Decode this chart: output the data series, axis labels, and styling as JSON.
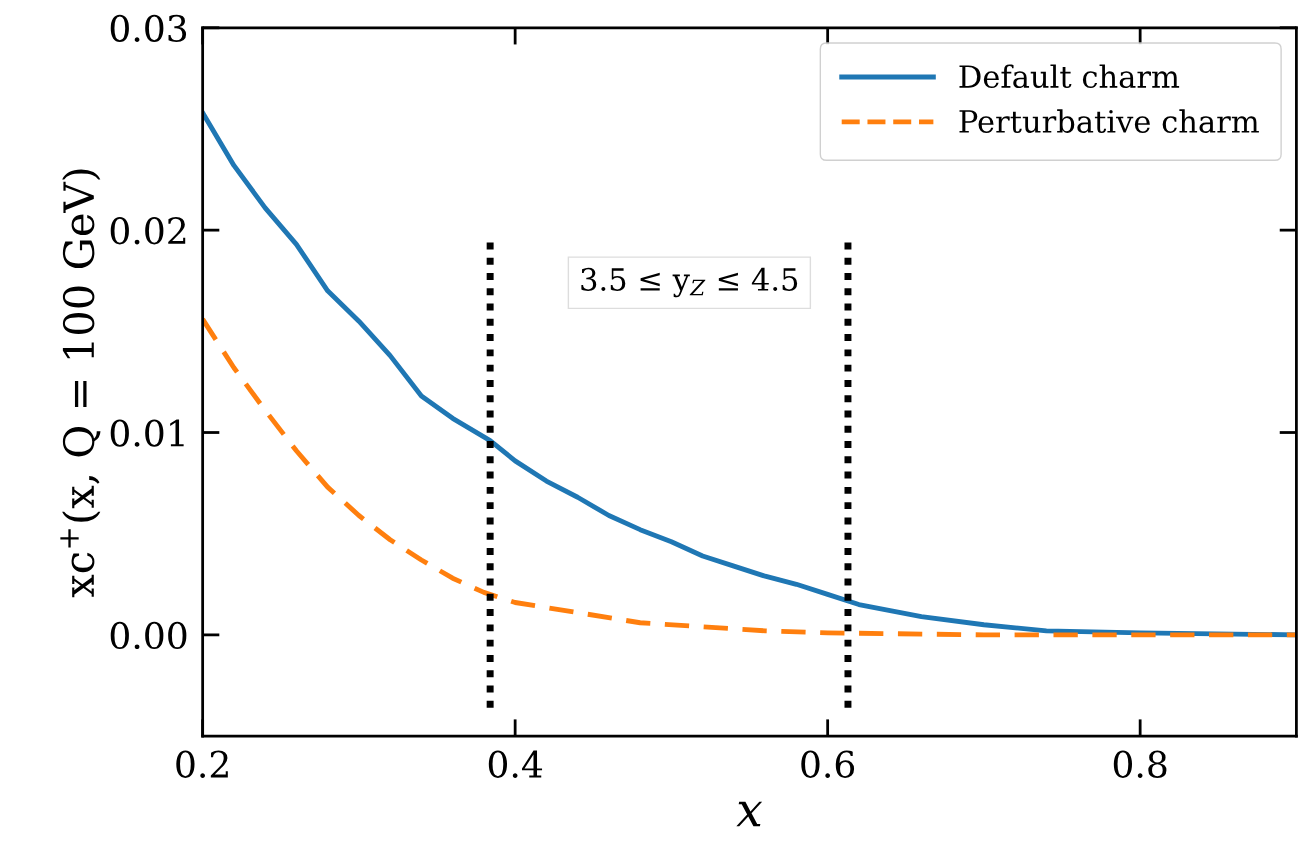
{
  "chart_data": {
    "type": "line",
    "xlabel": "x",
    "ylabel": "xc$^{+}$(x, Q = 100 GeV)",
    "xlim": [
      0.2,
      0.9
    ],
    "xticks": [
      0.2,
      0.4,
      0.6,
      0.8
    ],
    "ylim": [
      -0.005,
      0.03
    ],
    "yticks": [
      {
        "value": 0,
        "label": "0.00"
      },
      0.01,
      0.02,
      0.03
    ],
    "grid": false,
    "legend": "top right",
    "marker": "none",
    "series": [
      {
        "name": "Default charm",
        "color": "#1f77b4",
        "line_style": "solid",
        "x": [
          0.2,
          0.22,
          0.24,
          0.26,
          0.28,
          0.3,
          0.32,
          0.34,
          0.36,
          0.384,
          0.4,
          0.42,
          0.44,
          0.46,
          0.48,
          0.5,
          0.52,
          0.54,
          0.56,
          0.58,
          0.6,
          0.62,
          0.64,
          0.66,
          0.7,
          0.74,
          0.8,
          0.9
        ],
        "values": [
          0.0258,
          0.0232,
          0.0211,
          0.0193,
          0.017,
          0.0155,
          0.0138,
          0.0118,
          0.0107,
          0.0096,
          0.0086,
          0.0076,
          0.0068,
          0.0059,
          0.0052,
          0.0046,
          0.0039,
          0.0034,
          0.0029,
          0.0025,
          0.002,
          0.0015,
          0.0012,
          0.0009,
          0.0005,
          0.0002,
          0.0001,
          0.0
        ]
      },
      {
        "name": "Perturbative charm",
        "color": "#ff7f0e",
        "line_style": "dashed",
        "x": [
          0.2,
          0.22,
          0.24,
          0.26,
          0.28,
          0.3,
          0.32,
          0.34,
          0.36,
          0.38,
          0.4,
          0.44,
          0.48,
          0.52,
          0.56,
          0.6,
          0.7,
          0.9
        ],
        "values": [
          0.0156,
          0.0132,
          0.0111,
          0.0091,
          0.0073,
          0.0059,
          0.0047,
          0.0037,
          0.0028,
          0.0021,
          0.0016,
          0.0011,
          0.0006,
          0.0004,
          0.0002,
          0.0001,
          0.0,
          0.0
        ]
      }
    ],
    "ref_lines": [
      {
        "axis": "x",
        "value": 0.384,
        "color": "#000000",
        "line_style": "dotted"
      },
      {
        "axis": "x",
        "value": 0.613,
        "color": "#000000",
        "line_style": "dotted"
      }
    ],
    "annotations": [
      "3.5 ≤ y$_{Z}$ ≤ 4.5"
    ]
  }
}
